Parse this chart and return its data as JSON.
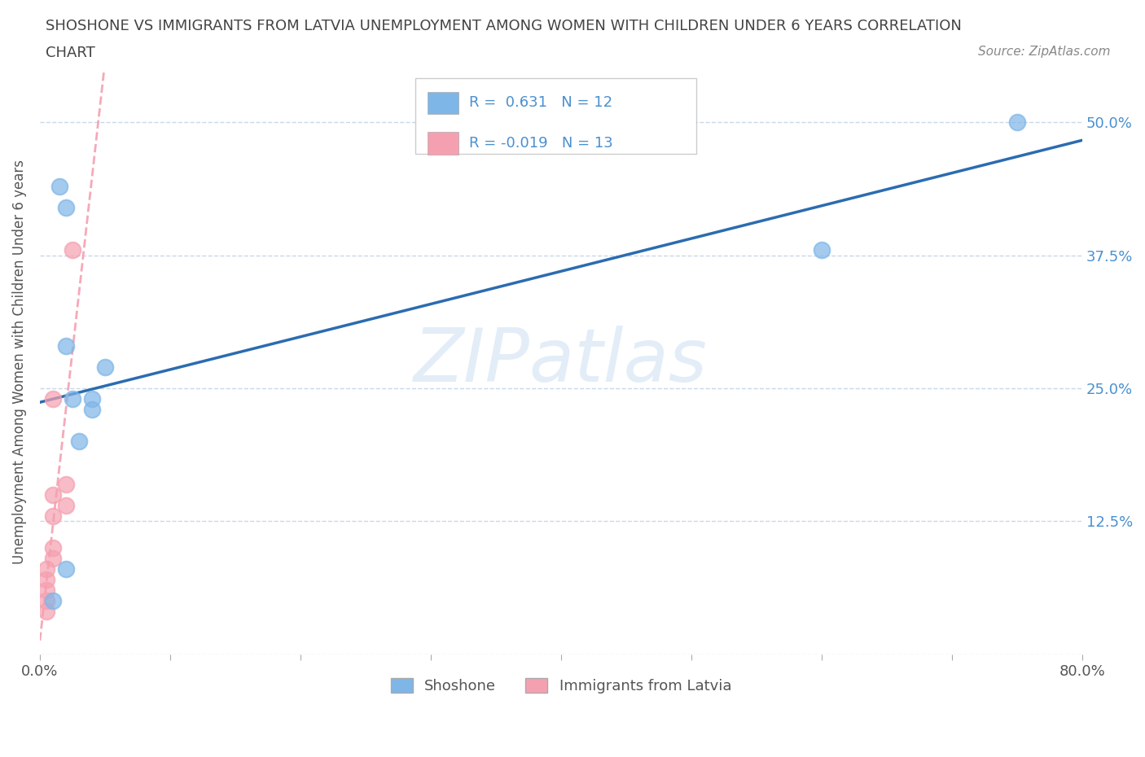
{
  "title_line1": "SHOSHONE VS IMMIGRANTS FROM LATVIA UNEMPLOYMENT AMONG WOMEN WITH CHILDREN UNDER 6 YEARS CORRELATION",
  "title_line2": "CHART",
  "source": "Source: ZipAtlas.com",
  "ylabel": "Unemployment Among Women with Children Under 6 years",
  "watermark": "ZIPatlas",
  "xlim": [
    0.0,
    0.8
  ],
  "ylim": [
    0.0,
    0.55
  ],
  "yticks": [
    0.0,
    0.125,
    0.25,
    0.375,
    0.5
  ],
  "ytick_labels_right": [
    "",
    "12.5%",
    "25.0%",
    "37.5%",
    "50.0%"
  ],
  "xticks": [
    0.0,
    0.1,
    0.2,
    0.3,
    0.4,
    0.5,
    0.6,
    0.7,
    0.8
  ],
  "xtick_labels": [
    "0.0%",
    "",
    "",
    "",
    "",
    "",
    "",
    "",
    "80.0%"
  ],
  "shoshone_x": [
    0.02,
    0.015,
    0.02,
    0.02,
    0.025,
    0.03,
    0.04,
    0.04,
    0.05,
    0.6,
    0.75,
    0.01
  ],
  "shoshone_y": [
    0.08,
    0.44,
    0.42,
    0.29,
    0.24,
    0.2,
    0.24,
    0.23,
    0.27,
    0.38,
    0.5,
    0.05
  ],
  "latvia_x": [
    0.005,
    0.005,
    0.005,
    0.005,
    0.005,
    0.01,
    0.01,
    0.01,
    0.01,
    0.01,
    0.02,
    0.02,
    0.025
  ],
  "latvia_y": [
    0.04,
    0.05,
    0.06,
    0.07,
    0.08,
    0.09,
    0.1,
    0.13,
    0.15,
    0.24,
    0.14,
    0.16,
    0.38
  ],
  "shoshone_color": "#7EB6E8",
  "latvia_color": "#F5A0B0",
  "shoshone_line_color": "#2B6CB0",
  "latvia_line_color": "#F5A0B0",
  "shoshone_R": 0.631,
  "shoshone_N": 12,
  "latvia_R": -0.019,
  "latvia_N": 13,
  "legend_shoshone": "Shoshone",
  "legend_latvia": "Immigrants from Latvia",
  "background_color": "#ffffff",
  "grid_color": "#c8d8e8",
  "title_color": "#444444",
  "axis_label_color": "#555555",
  "tick_color_right": "#4A90D0",
  "tick_label_color": "#555555",
  "source_color": "#888888"
}
